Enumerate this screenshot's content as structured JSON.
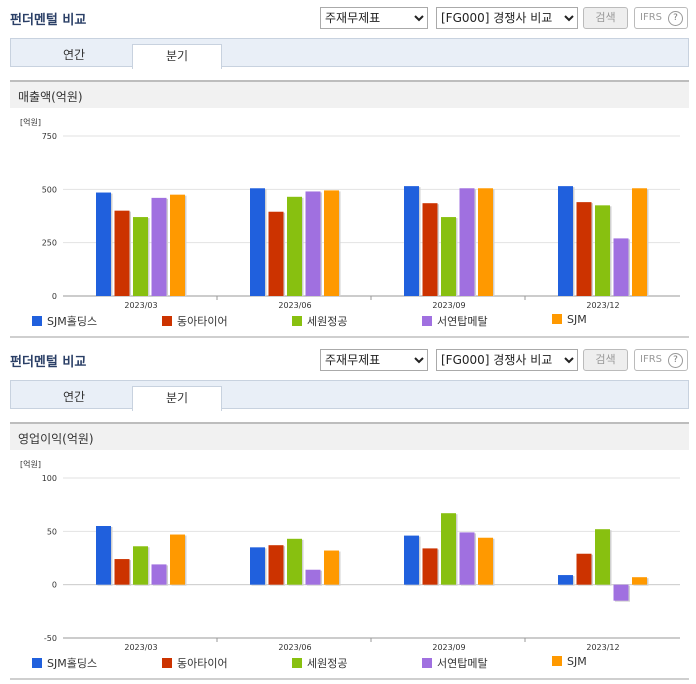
{
  "panels": [
    {
      "title": "펀더멘털 비교",
      "select1": "주재무제표",
      "select2": "[FG000] 경쟁사 비교",
      "search_label": "검색",
      "ifrs_label": "IFRS",
      "help_glyph": "?",
      "tabs": [
        {
          "label": "연간",
          "active": false
        },
        {
          "label": "분기",
          "active": true
        }
      ],
      "section_title": "매출액(억원)",
      "unit": "[억원]"
    },
    {
      "title": "펀더멘털 비교",
      "select1": "주재무제표",
      "select2": "[FG000] 경쟁사 비교",
      "search_label": "검색",
      "ifrs_label": "IFRS",
      "help_glyph": "?",
      "tabs": [
        {
          "label": "연간",
          "active": false
        },
        {
          "label": "분기",
          "active": true
        }
      ],
      "section_title": "영업이익(억원)",
      "unit": "[억원]"
    }
  ],
  "legend": [
    {
      "name": "SJM홀딩스",
      "color": "#2060dd"
    },
    {
      "name": "동아타이어",
      "color": "#cc3300"
    },
    {
      "name": "세원정공",
      "color": "#88c010"
    },
    {
      "name": "서연탑메탈",
      "color": "#a070e0"
    },
    {
      "name": "SJM",
      "color": "#ff9900"
    }
  ],
  "chart_data": [
    {
      "type": "bar",
      "title": "매출액(억원)",
      "ylabel": "[억원]",
      "categories": [
        "2023/03",
        "2023/06",
        "2023/09",
        "2023/12"
      ],
      "ylim": [
        0,
        750
      ],
      "yticks": [
        0,
        250,
        500,
        750
      ],
      "grid": true,
      "legend_position": "bottom",
      "series": [
        {
          "name": "SJM홀딩스",
          "values": [
            485,
            505,
            515,
            515
          ]
        },
        {
          "name": "동아타이어",
          "values": [
            400,
            395,
            435,
            440
          ]
        },
        {
          "name": "세원정공",
          "values": [
            370,
            465,
            370,
            425
          ]
        },
        {
          "name": "서연탑메탈",
          "values": [
            460,
            490,
            505,
            270
          ]
        },
        {
          "name": "SJM",
          "values": [
            475,
            495,
            505,
            505
          ]
        }
      ]
    },
    {
      "type": "bar",
      "title": "영업이익(억원)",
      "ylabel": "[억원]",
      "categories": [
        "2023/03",
        "2023/06",
        "2023/09",
        "2023/12"
      ],
      "ylim": [
        -50,
        100
      ],
      "yticks": [
        -50,
        0,
        50,
        100
      ],
      "grid": true,
      "legend_position": "bottom",
      "series": [
        {
          "name": "SJM홀딩스",
          "values": [
            55,
            35,
            46,
            9
          ]
        },
        {
          "name": "동아타이어",
          "values": [
            24,
            37,
            34,
            29
          ]
        },
        {
          "name": "세원정공",
          "values": [
            36,
            43,
            67,
            52
          ]
        },
        {
          "name": "서연탑메탈",
          "values": [
            19,
            14,
            49,
            -15
          ]
        },
        {
          "name": "SJM",
          "values": [
            47,
            32,
            44,
            7
          ]
        }
      ]
    }
  ]
}
